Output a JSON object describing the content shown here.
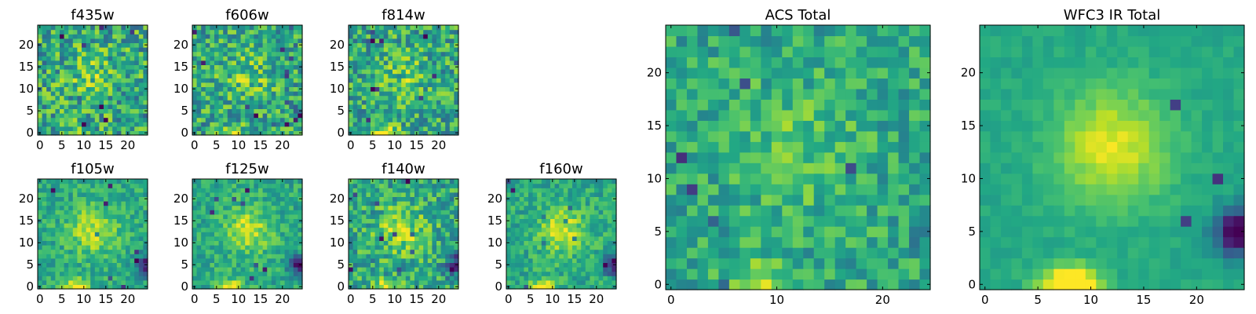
{
  "chart_data": [
    {
      "type": "heatmap",
      "title": "f435w",
      "grid_size": 25,
      "xlim": [
        0,
        24
      ],
      "ylim": [
        0,
        24
      ],
      "xticks": [
        0,
        5,
        10,
        15,
        20
      ],
      "yticks": [
        0,
        5,
        10,
        15,
        20
      ],
      "colormap": "viridis",
      "seed": 11,
      "spread": 0.55,
      "blob_strength": 0.15,
      "bottom_strength": 0.25,
      "corner_strength": 0.05
    },
    {
      "type": "heatmap",
      "title": "f606w",
      "grid_size": 25,
      "xlim": [
        0,
        24
      ],
      "ylim": [
        0,
        24
      ],
      "xticks": [
        0,
        5,
        10,
        15,
        20
      ],
      "yticks": [
        0,
        5,
        10,
        15,
        20
      ],
      "colormap": "viridis",
      "seed": 22,
      "spread": 0.5,
      "blob_strength": 0.15,
      "bottom_strength": 0.4,
      "corner_strength": 0.1
    },
    {
      "type": "heatmap",
      "title": "f814w",
      "grid_size": 25,
      "xlim": [
        0,
        24
      ],
      "ylim": [
        0,
        24
      ],
      "xticks": [
        0,
        5,
        10,
        15,
        20
      ],
      "yticks": [
        0,
        5,
        10,
        15,
        20
      ],
      "colormap": "viridis",
      "seed": 33,
      "spread": 0.5,
      "blob_strength": 0.15,
      "bottom_strength": 0.45,
      "corner_strength": 0.1
    },
    {
      "type": "heatmap",
      "title": "f105w",
      "grid_size": 25,
      "xlim": [
        0,
        24
      ],
      "ylim": [
        0,
        24
      ],
      "xticks": [
        0,
        5,
        10,
        15,
        20
      ],
      "yticks": [
        0,
        5,
        10,
        15,
        20
      ],
      "colormap": "viridis",
      "seed": 44,
      "spread": 0.3,
      "blob_strength": 0.3,
      "bottom_strength": 0.45,
      "corner_strength": 0.55
    },
    {
      "type": "heatmap",
      "title": "f125w",
      "grid_size": 25,
      "xlim": [
        0,
        24
      ],
      "ylim": [
        0,
        24
      ],
      "xticks": [
        0,
        5,
        10,
        15,
        20
      ],
      "yticks": [
        0,
        5,
        10,
        15,
        20
      ],
      "colormap": "viridis",
      "seed": 55,
      "spread": 0.3,
      "blob_strength": 0.3,
      "bottom_strength": 0.45,
      "corner_strength": 0.55
    },
    {
      "type": "heatmap",
      "title": "f140w",
      "grid_size": 25,
      "xlim": [
        0,
        24
      ],
      "ylim": [
        0,
        24
      ],
      "xticks": [
        0,
        5,
        10,
        15,
        20
      ],
      "yticks": [
        0,
        5,
        10,
        15,
        20
      ],
      "colormap": "viridis",
      "seed": 66,
      "spread": 0.45,
      "blob_strength": 0.25,
      "bottom_strength": 0.45,
      "corner_strength": 0.55
    },
    {
      "type": "heatmap",
      "title": "f160w",
      "grid_size": 25,
      "xlim": [
        0,
        24
      ],
      "ylim": [
        0,
        24
      ],
      "xticks": [
        0,
        5,
        10,
        15,
        20
      ],
      "yticks": [
        0,
        5,
        10,
        15,
        20
      ],
      "colormap": "viridis",
      "seed": 77,
      "spread": 0.3,
      "blob_strength": 0.3,
      "bottom_strength": 0.45,
      "corner_strength": 0.6
    },
    {
      "type": "heatmap",
      "title": "ACS Total",
      "grid_size": 25,
      "xlim": [
        0,
        24
      ],
      "ylim": [
        0,
        24
      ],
      "xticks": [
        0,
        10,
        20
      ],
      "yticks": [
        0,
        5,
        10,
        15,
        20
      ],
      "colormap": "viridis",
      "seed": 88,
      "spread": 0.35,
      "blob_strength": 0.15,
      "bottom_strength": 0.35,
      "corner_strength": 0.1
    },
    {
      "type": "heatmap",
      "title": "WFC3 IR Total",
      "grid_size": 25,
      "xlim": [
        0,
        24
      ],
      "ylim": [
        0,
        24
      ],
      "xticks": [
        0,
        5,
        10,
        15,
        20
      ],
      "yticks": [
        0,
        5,
        10,
        15,
        20
      ],
      "colormap": "viridis",
      "seed": 99,
      "spread": 0.1,
      "blob_strength": 0.35,
      "bottom_strength": 0.6,
      "corner_strength": 0.7
    }
  ]
}
